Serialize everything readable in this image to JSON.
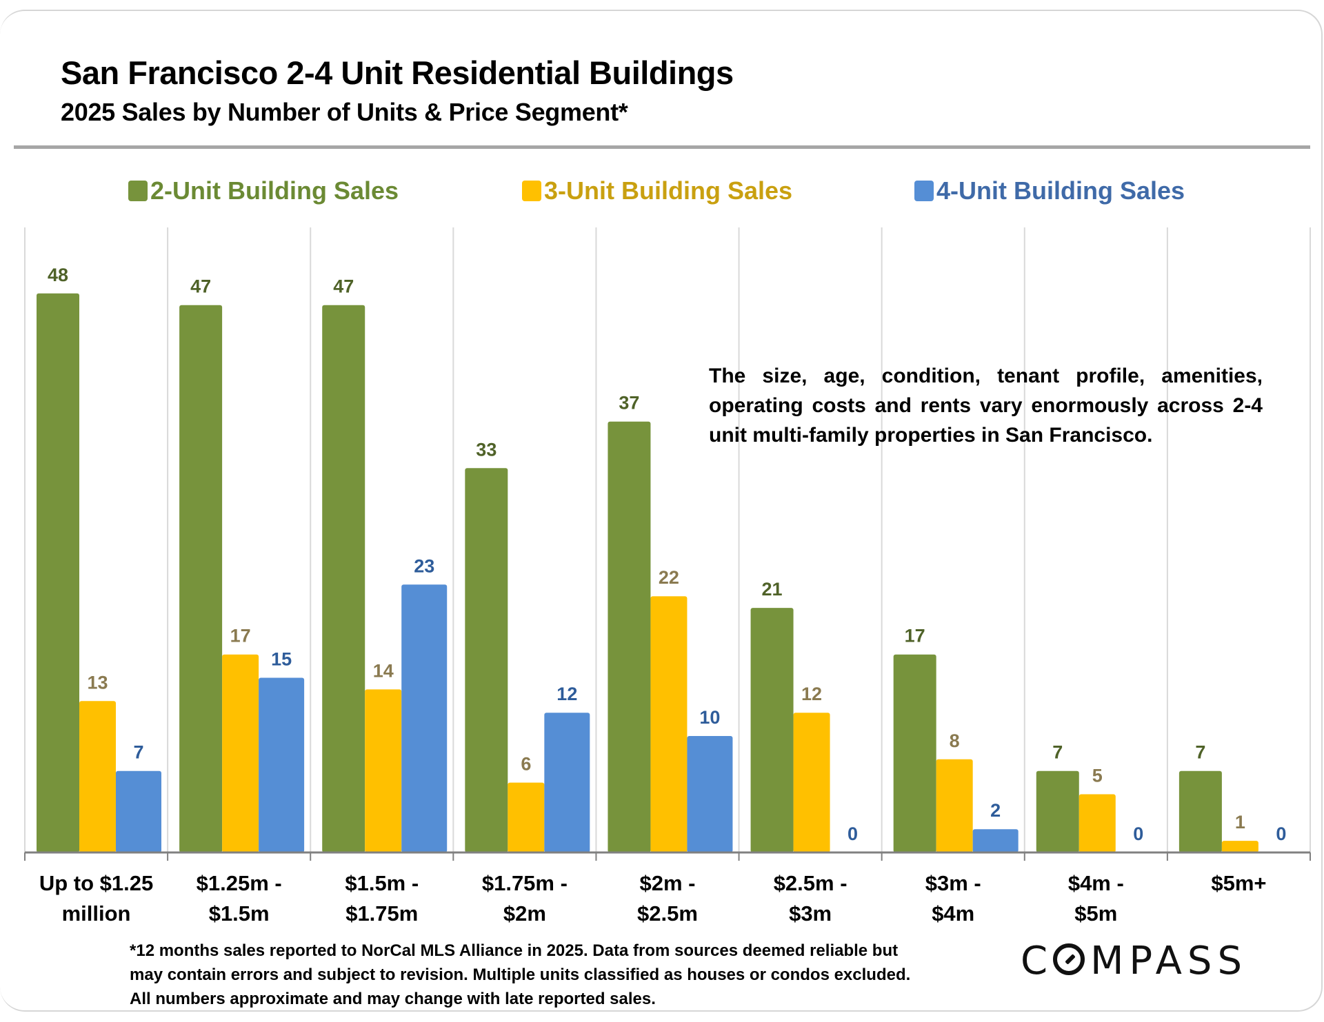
{
  "header": {
    "title": "San Francisco 2-4 Unit Residential Buildings",
    "subtitle": "2025 Sales by Number of Units & Price Segment*"
  },
  "legend": [
    {
      "label": "2-Unit Building Sales",
      "color": "#77933c",
      "text_color": "#6b8a34"
    },
    {
      "label": "3-Unit Building Sales",
      "color": "#ffc000",
      "text_color": "#c9a010"
    },
    {
      "label": "4-Unit Building Sales",
      "color": "#558ed5",
      "text_color": "#3f6aa8"
    }
  ],
  "annotation": "The size, age, condition, tenant profile, amenities, operating costs and rents vary enormously across 2-4 unit multi-family properties in San Francisco.",
  "footnote": {
    "lines": [
      "*12 months sales reported to NorCal MLS Alliance in 2025. Data from sources deemed reliable but",
      "may contain errors and subject to revision. Multiple units classified as houses or condos excluded.",
      "All numbers approximate and may change with late reported sales."
    ]
  },
  "logo": {
    "text_pre": "C",
    "text_post": "MPASS"
  },
  "chart_data": {
    "type": "bar",
    "title": "San Francisco 2-4 Unit Residential Buildings",
    "subtitle": "2025 Sales by Number of Units & Price Segment*",
    "xlabel": "",
    "ylabel": "",
    "ylim": [
      0,
      48
    ],
    "grid": "vertical category separators",
    "legend_position": "top",
    "categories": [
      [
        "Up to $1.25",
        "million"
      ],
      [
        "$1.25m -",
        "$1.5m"
      ],
      [
        "$1.5m -",
        "$1.75m"
      ],
      [
        "$1.75m -",
        "$2m"
      ],
      [
        "$2m -",
        "$2.5m"
      ],
      [
        "$2.5m -",
        "$3m"
      ],
      [
        "$3m -",
        "$4m"
      ],
      [
        "$4m -",
        "$5m"
      ],
      [
        "$5m+"
      ]
    ],
    "series": [
      {
        "name": "2-Unit Building Sales",
        "color": "#77933c",
        "label_color": "#4f6228",
        "values": [
          48,
          47,
          47,
          33,
          37,
          21,
          17,
          7,
          7
        ]
      },
      {
        "name": "3-Unit Building Sales",
        "color": "#ffc000",
        "label_color": "#8a7a50",
        "values": [
          13,
          17,
          14,
          6,
          22,
          12,
          8,
          5,
          1
        ]
      },
      {
        "name": "4-Unit Building Sales",
        "color": "#558ed5",
        "label_color": "#2e5c9a",
        "values": [
          7,
          15,
          23,
          12,
          10,
          0,
          2,
          0,
          0
        ]
      }
    ]
  }
}
